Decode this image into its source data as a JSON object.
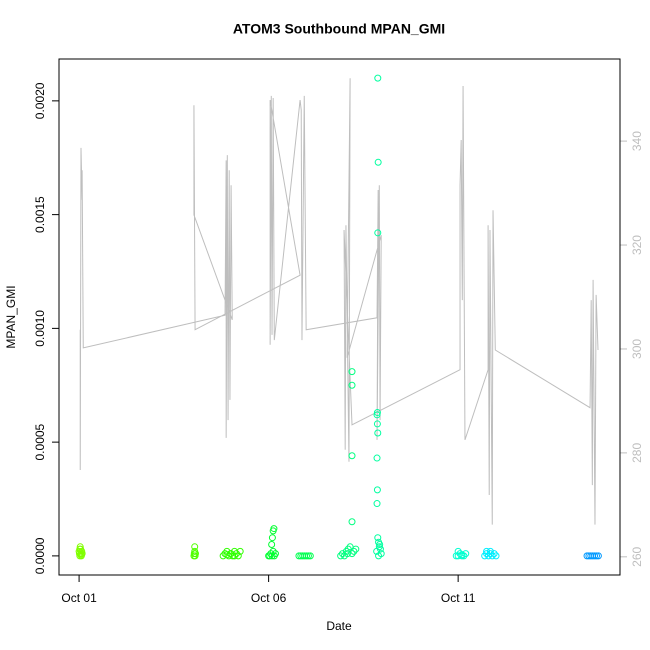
{
  "chart_data": {
    "type": "scatter",
    "title": "ATOM3 Southbound MPAN_GMI",
    "xlabel": "Date",
    "ylabel": "MPAN_GMI",
    "xlim": [
      -0.53,
      14.27
    ],
    "ylim": [
      -8.4e-05,
      0.002184
    ],
    "y2lim": [
      256.5,
      355.8
    ],
    "xticks": [
      {
        "value": 0,
        "label": "Oct 01"
      },
      {
        "value": 5,
        "label": "Oct 06"
      },
      {
        "value": 10,
        "label": "Oct 11"
      }
    ],
    "yticks": [
      {
        "value": 0,
        "label": "0.0000"
      },
      {
        "value": 0.0005,
        "label": "0.0005"
      },
      {
        "value": 0.001,
        "label": "0.0010"
      },
      {
        "value": 0.0015,
        "label": "0.0015"
      },
      {
        "value": 0.002,
        "label": "0.0020"
      }
    ],
    "y2ticks": [
      260,
      280,
      300,
      320,
      340
    ],
    "y2color": "#bebebe",
    "series": [
      {
        "type": "scatter",
        "color": "#80FF00",
        "x": [
          0,
          0.01,
          0.02,
          0.03,
          0.04,
          0.05,
          0.06,
          0.07,
          0.08,
          0.02,
          0.05
        ],
        "values": [
          2e-05,
          1e-05,
          0,
          4e-05,
          3e-05,
          1e-05,
          0,
          2e-05,
          1e-05,
          3e-05,
          5e-06
        ]
      },
      {
        "type": "scatter",
        "color": "#50FF00",
        "x": [
          3.03,
          3.04,
          3.05,
          3.06,
          3.07,
          3.05
        ],
        "values": [
          0,
          1e-05,
          4e-05,
          0,
          1e-05,
          2e-05
        ]
      },
      {
        "type": "scatter",
        "color": "#30FF00",
        "x": [
          3.8,
          3.85,
          3.9,
          3.95,
          4.0,
          4.05,
          4.1,
          4.15,
          4.2,
          4.25,
          3.9,
          4.0,
          4.1
        ],
        "values": [
          0,
          1e-05,
          2e-05,
          0,
          1e-05,
          0,
          2e-05,
          1e-05,
          0,
          2e-05,
          5e-06,
          1e-05,
          0
        ]
      },
      {
        "type": "scatter",
        "color": "#00FF30",
        "x": [
          5.0,
          5.03,
          5.06,
          5.09,
          5.12,
          5.15,
          5.18,
          5.08,
          5.1,
          5.12,
          5.14
        ],
        "values": [
          0,
          0,
          1e-05,
          0,
          2e-05,
          0,
          1e-05,
          5e-05,
          8e-05,
          0.00011,
          0.00012
        ]
      },
      {
        "type": "scatter",
        "color": "#00FF50",
        "x": [
          5.8,
          5.85,
          5.9,
          5.95,
          6.0,
          6.05,
          6.1
        ],
        "values": [
          0,
          0,
          0,
          0,
          0,
          0,
          0
        ]
      },
      {
        "type": "scatter",
        "color": "#00FF80",
        "x": [
          6.9,
          6.95,
          7.0,
          7.05,
          7.1,
          7.15,
          7.2,
          7.25,
          7.3,
          7.08,
          7.2,
          7.2,
          7.2,
          7.2
        ],
        "values": [
          0,
          1e-05,
          0,
          2e-05,
          3e-05,
          4e-05,
          1e-05,
          2e-05,
          3e-05,
          1e-05,
          0.00081,
          0.00075,
          0.00044,
          0.00015
        ]
      },
      {
        "type": "scatter",
        "color": "#00FFA0",
        "x": [
          7.88,
          7.89,
          7.88,
          7.87,
          7.86,
          7.87,
          7.88,
          7.86,
          7.87,
          7.86,
          7.88,
          7.9,
          7.92,
          7.85,
          7.95,
          7.97,
          7.9,
          7.93
        ],
        "values": [
          0.0021,
          0.00173,
          0.00142,
          0.00063,
          0.00062,
          0.00058,
          0.00054,
          0.00043,
          0.00029,
          0.00023,
          8e-05,
          6e-05,
          4e-05,
          2e-05,
          3e-05,
          1e-05,
          0,
          5e-05
        ]
      },
      {
        "type": "scatter",
        "color": "#00FFD0",
        "x": [
          9.95,
          10.0,
          10.05,
          10.1,
          10.15,
          10.2,
          10.0,
          10.1
        ],
        "values": [
          0,
          0,
          1e-05,
          0,
          0,
          1e-05,
          2e-05,
          5e-06
        ]
      },
      {
        "type": "scatter",
        "color": "#00EEFF",
        "x": [
          10.7,
          10.75,
          10.8,
          10.85,
          10.9,
          10.95,
          11.0,
          10.75,
          10.85
        ],
        "values": [
          0,
          1e-05,
          0,
          2e-05,
          0,
          1e-05,
          0,
          2e-05,
          1e-05
        ]
      },
      {
        "type": "scatter",
        "color": "#0099FF",
        "x": [
          13.4,
          13.45,
          13.5,
          13.55,
          13.6,
          13.65,
          13.7
        ],
        "values": [
          0,
          0,
          0,
          0,
          0,
          0,
          0
        ]
      },
      {
        "type": "line",
        "axis": "y2",
        "color": "#bebebe",
        "x": [
          0.03,
          0.03,
          0.05,
          0.08,
          0.08,
          0.11,
          3.85,
          3.88,
          3.88,
          3.91,
          3.93,
          3.96,
          3.98,
          4.01,
          4.04,
          3.03,
          3.03,
          3.06,
          5.83,
          5.04,
          5.04,
          5.07,
          5.09,
          5.12,
          5.15,
          5.83,
          5.86,
          5.88,
          5.94,
          5.99,
          7.86,
          7.89,
          7.86,
          7.92,
          7.94,
          7.97,
          7.07,
          7.15,
          7.12,
          7.04,
          7.02,
          6.99,
          7.2,
          10.05,
          10.05,
          10.08,
          10.11,
          10.13,
          10.18,
          10.79,
          10.79,
          10.82,
          10.84,
          10.9,
          10.92,
          10.98,
          13.48,
          13.51,
          13.54,
          13.56,
          13.61,
          13.64,
          13.69
        ],
        "values": [
          303.7,
          276.7,
          338.7,
          328.7,
          334.4,
          300.2,
          306.5,
          336.3,
          282.9,
          337.3,
          286.3,
          334.4,
          290.2,
          331.5,
          305.6,
          325.8,
          346.9,
          303.7,
          314.2,
          347.9,
          300.8,
          348.7,
          302.7,
          348.3,
          301.7,
          347.9,
          346.0,
          301.7,
          348.7,
          303.7,
          306.0,
          330.6,
          282.5,
          331.5,
          286.3,
          321.9,
          298.3,
          352.1,
          278.3,
          323.8,
          280.6,
          322.9,
          285.4,
          296.0,
          331.5,
          340.2,
          309.4,
          350.6,
          282.5,
          296.0,
          323.8,
          271.9,
          322.9,
          266.2,
          326.7,
          299.8,
          288.7,
          309.4,
          273.8,
          313.3,
          266.2,
          310.4,
          299.8
        ]
      }
    ]
  }
}
